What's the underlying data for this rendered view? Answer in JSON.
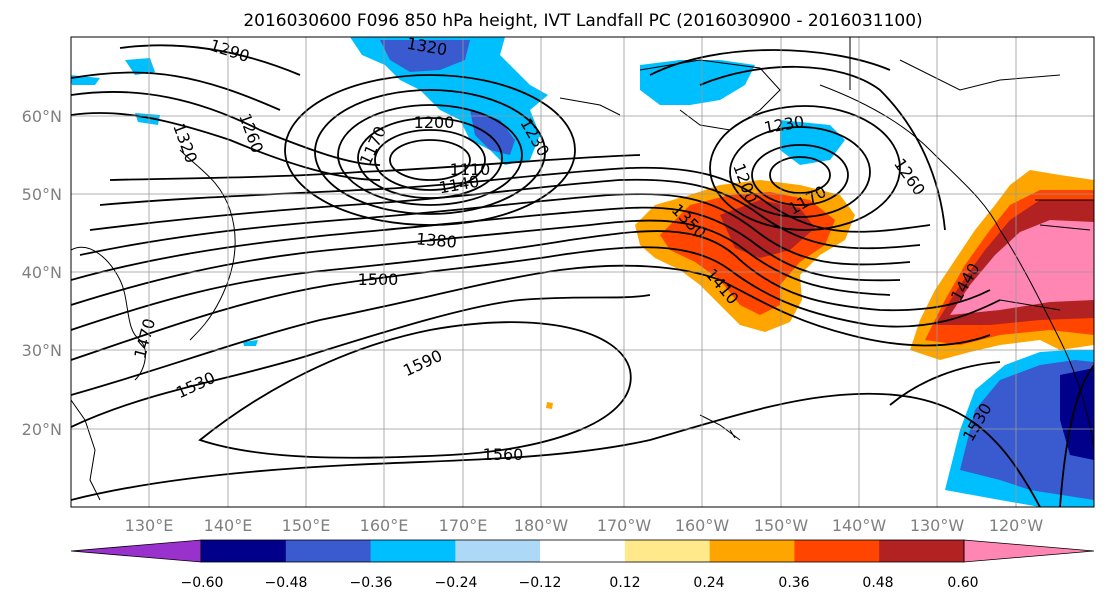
{
  "title": "2016030600 F096 850 hPa height, IVT Landfall PC (2016030900 - 2016031100)",
  "lat_ticks": [
    "60°N",
    "50°N",
    "40°N",
    "30°N",
    "20°N"
  ],
  "lon_ticks": [
    "130°E",
    "140°E",
    "150°E",
    "160°E",
    "170°E",
    "180°W",
    "170°W",
    "160°W",
    "150°W",
    "140°W",
    "130°W",
    "120°W"
  ],
  "contour_labels": [
    "1290",
    "1320",
    "1260",
    "1320",
    "1170",
    "1200",
    "1230",
    "1140",
    "1110",
    "1380",
    "1230",
    "1200",
    "1170",
    "1260",
    "1350",
    "1410",
    "1500",
    "1440",
    "1470",
    "1530",
    "1590",
    "1530",
    "1560"
  ],
  "colorbar": {
    "colors": [
      "#9932cc",
      "#00008b",
      "#3a5bd0",
      "#00bfff",
      "#add8f6",
      "#ffffff",
      "#ffe98a",
      "#ffa500",
      "#ff4500",
      "#b22222",
      "#ff85b3"
    ],
    "tick_labels": [
      "−0.60",
      "−0.48",
      "−0.36",
      "−0.24",
      "−0.12",
      "0.12",
      "0.24",
      "0.36",
      "0.48",
      "0.60"
    ]
  }
}
